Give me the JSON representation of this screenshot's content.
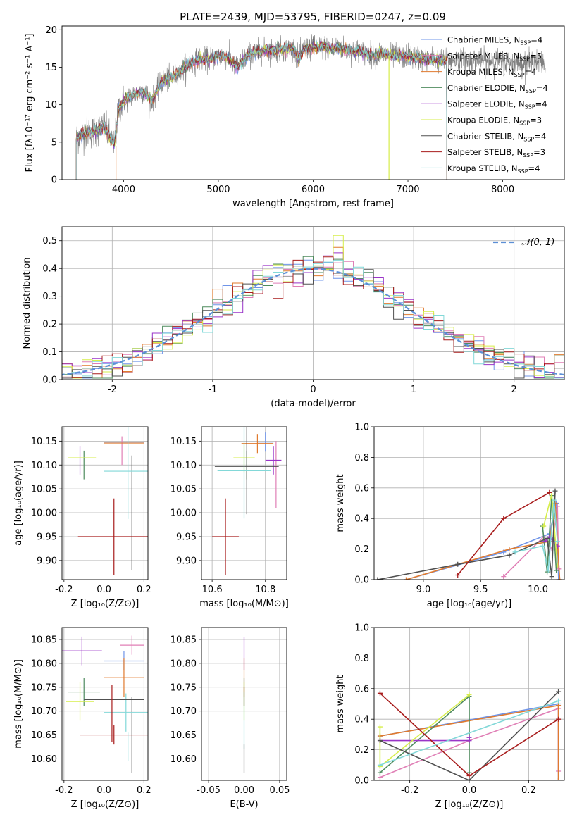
{
  "figure_title": "PLATE=2439, MJD=53795, FIBERID=0247, z=0.09",
  "colors": {
    "Chabrier MILES": "#6f94e8",
    "Salpeter MILES": "#e07fb6",
    "Kroupa MILES": "#e07a2e",
    "Chabrier ELODIE": "#4f8b5e",
    "Salpeter ELODIE": "#9a34c8",
    "Kroupa ELODIE": "#d6ee4a",
    "Chabrier STELIB": "#505050",
    "Salpeter STELIB": "#a81c1c",
    "Kroupa STELIB": "#82d8d8",
    "data": "#7f7f7f",
    "normal": "#5b8fd6",
    "grid": "#b0b0b0"
  },
  "chart_data": [
    {
      "id": "spectrum",
      "type": "line",
      "xlabel": "wavelength [Angstrom, rest frame]",
      "ylabel": "Flux [fλ10⁻¹⁷ erg cm⁻² s⁻¹ A⁻¹]",
      "xlim": [
        3350,
        8650
      ],
      "ylim": [
        0,
        20.5
      ],
      "xticks": [
        4000,
        5000,
        6000,
        7000,
        8000
      ],
      "yticks": [
        0,
        5,
        10,
        15,
        20
      ],
      "grid": false,
      "legend_position": "right",
      "legend": [
        "Chabrier MILES, N_SSP=4",
        "Salpeter MILES, N_SSP=5",
        "Kroupa MILES, N_SSP=4",
        "Chabrier ELODIE, N_SSP=4",
        "Salpeter ELODIE, N_SSP=4",
        "Kroupa ELODIE, N_SSP=3",
        "Chabrier STELIB, N_SSP=4",
        "Salpeter STELIB, N_SSP=3",
        "Kroupa STELIB, N_SSP=4"
      ],
      "continuum": [
        [
          3500,
          5.5
        ],
        [
          3600,
          6.2
        ],
        [
          3700,
          6.5
        ],
        [
          3800,
          7.0
        ],
        [
          3900,
          4.5
        ],
        [
          3950,
          9.5
        ],
        [
          4000,
          10.5
        ],
        [
          4100,
          11.3
        ],
        [
          4200,
          11.8
        ],
        [
          4300,
          10.5
        ],
        [
          4400,
          13.0
        ],
        [
          4500,
          13.5
        ],
        [
          4600,
          14.5
        ],
        [
          4700,
          15.5
        ],
        [
          4800,
          16.0
        ],
        [
          4900,
          16.0
        ],
        [
          5000,
          16.5
        ],
        [
          5100,
          16.3
        ],
        [
          5200,
          15.0
        ],
        [
          5300,
          16.5
        ],
        [
          5400,
          17.0
        ],
        [
          5500,
          17.2
        ],
        [
          5600,
          17.3
        ],
        [
          5700,
          17.4
        ],
        [
          5800,
          17.5
        ],
        [
          5850,
          16.0
        ],
        [
          5900,
          17.4
        ],
        [
          6000,
          17.6
        ],
        [
          6100,
          17.7
        ],
        [
          6200,
          17.5
        ],
        [
          6300,
          17.6
        ],
        [
          6400,
          17.2
        ],
        [
          6500,
          17.1
        ],
        [
          6600,
          16.7
        ],
        [
          6700,
          16.8
        ],
        [
          6800,
          16.6
        ],
        [
          6900,
          16.4
        ],
        [
          7000,
          16.5
        ],
        [
          7100,
          16.2
        ],
        [
          7200,
          16.1
        ],
        [
          7300,
          16.0
        ],
        [
          7400,
          15.8
        ]
      ],
      "data_wavelength_range": [
        3500,
        8450
      ],
      "model_wavelength_range": [
        3500,
        7410
      ]
    },
    {
      "id": "residuals",
      "type": "histogram",
      "xlabel": "(data-model)/error",
      "ylabel": "Normed distribution",
      "xlim": [
        -2.5,
        2.5
      ],
      "ylim": [
        0,
        0.55
      ],
      "xticks": [
        -2,
        -1,
        0,
        1,
        2
      ],
      "yticks": [
        0.0,
        0.1,
        0.2,
        0.3,
        0.4,
        0.5
      ],
      "grid": true,
      "bin_width": 0.1,
      "legend": [
        "𝒩(0, 1)"
      ],
      "legend_position": "top-right"
    },
    {
      "id": "age_vs_Z",
      "type": "errorbar",
      "xlabel": "Z [log₁₀(Z/Z⊙)]",
      "ylabel": "age  [log₁₀(age/yr)]",
      "xlim": [
        -0.21,
        0.22
      ],
      "ylim": [
        9.86,
        10.18
      ],
      "xticks": [
        -0.2,
        0.0,
        0.2
      ],
      "yticks": [
        9.9,
        9.95,
        10.0,
        10.05,
        10.1,
        10.15
      ],
      "grid": true,
      "series": [
        {
          "name": "Chabrier MILES",
          "x": 0.1,
          "xerr": 0.1,
          "y": 10.148,
          "yerr": 0.0
        },
        {
          "name": "Salpeter MILES",
          "x": 0.09,
          "xerr": 0.0,
          "y": 10.13,
          "yerr": 0.03
        },
        {
          "name": "Kroupa MILES",
          "x": 0.1,
          "xerr": 0.1,
          "y": 10.146,
          "yerr": 0.0
        },
        {
          "name": "Chabrier ELODIE",
          "x": -0.1,
          "xerr": 0.0,
          "y": 10.1,
          "yerr": 0.03
        },
        {
          "name": "Salpeter ELODIE",
          "x": -0.12,
          "xerr": 0.0,
          "y": 10.11,
          "yerr": 0.03
        },
        {
          "name": "Kroupa ELODIE",
          "x": -0.11,
          "xerr": 0.07,
          "y": 10.115,
          "yerr": 0.0
        },
        {
          "name": "Chabrier STELIB",
          "x": 0.14,
          "xerr": 0.0,
          "y": 10.0,
          "yerr": 0.12
        },
        {
          "name": "Salpeter STELIB",
          "x": 0.05,
          "xerr": 0.18,
          "y": 9.95,
          "yerr": 0.08
        },
        {
          "name": "Kroupa STELIB",
          "x": 0.12,
          "xerr": 0.12,
          "y": 10.087,
          "yerr": 0.1
        }
      ]
    },
    {
      "id": "age_vs_mass",
      "type": "errorbar",
      "xlabel": "mass [log₁₀(M/M⊙)]",
      "ylabel": "",
      "xlim": [
        10.56,
        10.88
      ],
      "ylim": [
        9.86,
        10.18
      ],
      "xticks": [
        10.6,
        10.8
      ],
      "yticks": [
        9.9,
        9.95,
        10.0,
        10.05,
        10.1,
        10.15
      ],
      "grid": true,
      "series": [
        {
          "name": "Chabrier MILES",
          "x": 10.8,
          "xerr": 0.03,
          "y": 10.148,
          "yerr": 0.02
        },
        {
          "name": "Salpeter MILES",
          "x": 10.84,
          "xerr": 0.0,
          "y": 10.08,
          "yerr": 0.07
        },
        {
          "name": "Kroupa MILES",
          "x": 10.77,
          "xerr": 0.06,
          "y": 10.145,
          "yerr": 0.02
        },
        {
          "name": "Chabrier ELODIE",
          "x": 10.73,
          "xerr": 0.0,
          "y": 10.1,
          "yerr": 0.03
        },
        {
          "name": "Salpeter ELODIE",
          "x": 10.83,
          "xerr": 0.03,
          "y": 10.11,
          "yerr": 0.03
        },
        {
          "name": "Kroupa ELODIE",
          "x": 10.72,
          "xerr": 0.04,
          "y": 10.115,
          "yerr": 0.03
        },
        {
          "name": "Chabrier STELIB",
          "x": 10.73,
          "xerr": 0.12,
          "y": 10.097,
          "yerr": 0.1
        },
        {
          "name": "Salpeter STELIB",
          "x": 10.65,
          "xerr": 0.05,
          "y": 9.95,
          "yerr": 0.08
        },
        {
          "name": "Kroupa STELIB",
          "x": 10.72,
          "xerr": 0.1,
          "y": 10.088,
          "yerr": 0.1
        }
      ]
    },
    {
      "id": "weight_vs_age",
      "type": "line",
      "xlabel": "age  [log₁₀(age/yr)]",
      "ylabel": "mass weight",
      "xlim": [
        8.57,
        10.23
      ],
      "ylim": [
        0,
        1.0
      ],
      "xticks": [
        9.0,
        9.5,
        10.0
      ],
      "yticks": [
        0.0,
        0.2,
        0.4,
        0.6,
        0.8,
        1.0
      ],
      "grid": true,
      "series": [
        {
          "name": "Chabrier MILES",
          "points": [
            [
              8.85,
              0.0
            ],
            [
              9.7,
              0.18
            ],
            [
              10.1,
              0.3
            ],
            [
              10.16,
              0.5
            ],
            [
              10.18,
              0.0
            ]
          ]
        },
        {
          "name": "Salpeter MILES",
          "points": [
            [
              9.7,
              0.02
            ],
            [
              10.05,
              0.28
            ],
            [
              10.12,
              0.2
            ],
            [
              10.17,
              0.48
            ],
            [
              10.18,
              0.07
            ]
          ]
        },
        {
          "name": "Kroupa MILES",
          "points": [
            [
              8.85,
              0.0
            ],
            [
              9.75,
              0.2
            ],
            [
              10.1,
              0.25
            ],
            [
              10.15,
              0.5
            ],
            [
              10.19,
              0.0
            ]
          ]
        },
        {
          "name": "Chabrier ELODIE",
          "points": [
            [
              10.04,
              0.35
            ],
            [
              10.08,
              0.05
            ],
            [
              10.12,
              0.55
            ],
            [
              10.16,
              0.06
            ]
          ]
        },
        {
          "name": "Salpeter ELODIE",
          "points": [
            [
              10.06,
              0.25
            ],
            [
              10.1,
              0.28
            ],
            [
              10.13,
              0.26
            ],
            [
              10.17,
              0.22
            ]
          ]
        },
        {
          "name": "Kroupa ELODIE",
          "points": [
            [
              10.05,
              0.35
            ],
            [
              10.12,
              0.56
            ],
            [
              10.17,
              0.09
            ]
          ]
        },
        {
          "name": "Chabrier STELIB",
          "points": [
            [
              8.6,
              0.0
            ],
            [
              9.3,
              0.1
            ],
            [
              9.75,
              0.16
            ],
            [
              10.08,
              0.27
            ],
            [
              10.12,
              0.02
            ],
            [
              10.15,
              0.58
            ]
          ]
        },
        {
          "name": "Salpeter STELIB",
          "points": [
            [
              9.3,
              0.03
            ],
            [
              9.7,
              0.4
            ],
            [
              10.1,
              0.57
            ]
          ]
        },
        {
          "name": "Kroupa STELIB",
          "points": [
            [
              9.8,
              0.18
            ],
            [
              10.04,
              0.22
            ],
            [
              10.09,
              0.06
            ],
            [
              10.14,
              0.52
            ],
            [
              10.17,
              0.25
            ]
          ]
        }
      ]
    },
    {
      "id": "mass_vs_Z",
      "type": "errorbar",
      "xlabel": "Z [log₁₀(Z/Z⊙)]",
      "ylabel": "mass [log₁₀(M/M⊙)]",
      "xlim": [
        -0.21,
        0.22
      ],
      "ylim": [
        10.555,
        10.875
      ],
      "xticks": [
        -0.2,
        0.0,
        0.2
      ],
      "yticks": [
        10.6,
        10.65,
        10.7,
        10.75,
        10.8,
        10.85
      ],
      "grid": true,
      "series": [
        {
          "name": "Chabrier MILES",
          "x": 0.1,
          "xerr": 0.1,
          "y": 10.805,
          "yerr": 0.02
        },
        {
          "name": "Salpeter MILES",
          "x": 0.14,
          "xerr": 0.06,
          "y": 10.838,
          "yerr": 0.02
        },
        {
          "name": "Kroupa MILES",
          "x": 0.1,
          "xerr": 0.1,
          "y": 10.77,
          "yerr": 0.04
        },
        {
          "name": "Chabrier ELODIE",
          "x": -0.1,
          "xerr": 0.08,
          "y": 10.74,
          "yerr": 0.03
        },
        {
          "name": "Salpeter ELODIE",
          "x": -0.11,
          "xerr": 0.1,
          "y": 10.826,
          "yerr": 0.03
        },
        {
          "name": "Kroupa ELODIE",
          "x": -0.12,
          "xerr": 0.07,
          "y": 10.72,
          "yerr": 0.04
        },
        {
          "name": "Chabrier STELIB",
          "x": 0.14,
          "xerr": 0.0,
          "y": 10.65,
          "yerr": 0.08
        },
        {
          "name": "Salpeter STELIB",
          "x": 0.05,
          "xerr": 0.17,
          "y": 10.65,
          "yerr": 0.02
        },
        {
          "name": "Kroupa STELIB",
          "x": 0.11,
          "xerr": 0.11,
          "y": 10.697,
          "yerr": 0.04
        },
        {
          "name": "Chabrier STELIB",
          "x": 0.05,
          "xerr": 0.15,
          "y": 10.724,
          "yerr": 0.0
        },
        {
          "name": "Salpeter STELIB",
          "x": 0.04,
          "xerr": 0.0,
          "y": 10.695,
          "yerr": 0.06
        },
        {
          "name": "Kroupa STELIB",
          "x": 0.12,
          "xerr": 0.0,
          "y": 10.625,
          "yerr": 0.03
        }
      ]
    },
    {
      "id": "mass_vs_ebv",
      "type": "errorbar",
      "xlabel": "E(B-V)",
      "ylabel": "",
      "xlim": [
        -0.06,
        0.06
      ],
      "ylim": [
        10.555,
        10.875
      ],
      "xticks": [
        -0.05,
        0.0,
        0.05
      ],
      "yticks": [
        10.6,
        10.65,
        10.7,
        10.75,
        10.8,
        10.85
      ],
      "grid": true,
      "series": [
        {
          "name": "Salpeter ELODIE",
          "x": 0.0,
          "xerr": 0.0,
          "y": 10.82,
          "yerr": 0.035
        },
        {
          "name": "Kroupa MILES",
          "x": 0.0,
          "xerr": 0.0,
          "y": 10.77,
          "yerr": 0.04
        },
        {
          "name": "Chabrier ELODIE",
          "x": 0.0,
          "xerr": 0.0,
          "y": 10.74,
          "yerr": 0.03
        },
        {
          "name": "Salpeter STELIB",
          "x": 0.0,
          "xerr": 0.0,
          "y": 10.73,
          "yerr": 0.02
        },
        {
          "name": "Kroupa ELODIE",
          "x": 0.0,
          "xerr": 0.0,
          "y": 10.72,
          "yerr": 0.04
        },
        {
          "name": "Kroupa STELIB",
          "x": 0.0,
          "xerr": 0.0,
          "y": 10.68,
          "yerr": 0.06
        },
        {
          "name": "Chabrier STELIB",
          "x": 0.0,
          "xerr": 0.0,
          "y": 10.6,
          "yerr": 0.03
        }
      ]
    },
    {
      "id": "weight_vs_Z",
      "type": "line",
      "xlabel": "Z [log₁₀(Z/Z⊙)]",
      "ylabel": "mass weight",
      "xlim": [
        -0.32,
        0.32
      ],
      "ylim": [
        0,
        1.0
      ],
      "xticks": [
        -0.2,
        0.0,
        0.2
      ],
      "yticks": [
        0.0,
        0.2,
        0.4,
        0.6,
        0.8,
        1.0
      ],
      "grid": true,
      "series": [
        {
          "name": "Chabrier MILES",
          "points": [
            [
              -0.3,
              0.29
            ],
            [
              0.3,
              0.5
            ],
            [
              0.3,
              0.0
            ]
          ]
        },
        {
          "name": "Salpeter MILES",
          "points": [
            [
              -0.3,
              0.02
            ],
            [
              0.0,
              0.26
            ],
            [
              0.3,
              0.47
            ],
            [
              0.3,
              0.06
            ]
          ]
        },
        {
          "name": "Kroupa MILES",
          "points": [
            [
              -0.3,
              0.29
            ],
            [
              0.3,
              0.49
            ],
            [
              0.3,
              0.0
            ]
          ]
        },
        {
          "name": "Chabrier ELODIE",
          "points": [
            [
              -0.3,
              0.05
            ],
            [
              0.0,
              0.55
            ],
            [
              0.0,
              0.05
            ]
          ]
        },
        {
          "name": "Salpeter ELODIE",
          "points": [
            [
              -0.3,
              0.26
            ],
            [
              0.0,
              0.26
            ],
            [
              0.0,
              0.28
            ]
          ]
        },
        {
          "name": "Kroupa ELODIE",
          "points": [
            [
              -0.3,
              0.35
            ],
            [
              -0.3,
              0.09
            ],
            [
              0.0,
              0.56
            ]
          ]
        },
        {
          "name": "Chabrier STELIB",
          "points": [
            [
              -0.3,
              0.26
            ],
            [
              0.0,
              0.0
            ],
            [
              0.3,
              0.58
            ]
          ]
        },
        {
          "name": "Salpeter STELIB",
          "points": [
            [
              -0.3,
              0.57
            ],
            [
              0.0,
              0.03
            ],
            [
              0.3,
              0.4
            ]
          ]
        },
        {
          "name": "Kroupa STELIB",
          "points": [
            [
              -0.3,
              0.1
            ],
            [
              0.3,
              0.52
            ]
          ]
        }
      ]
    }
  ]
}
